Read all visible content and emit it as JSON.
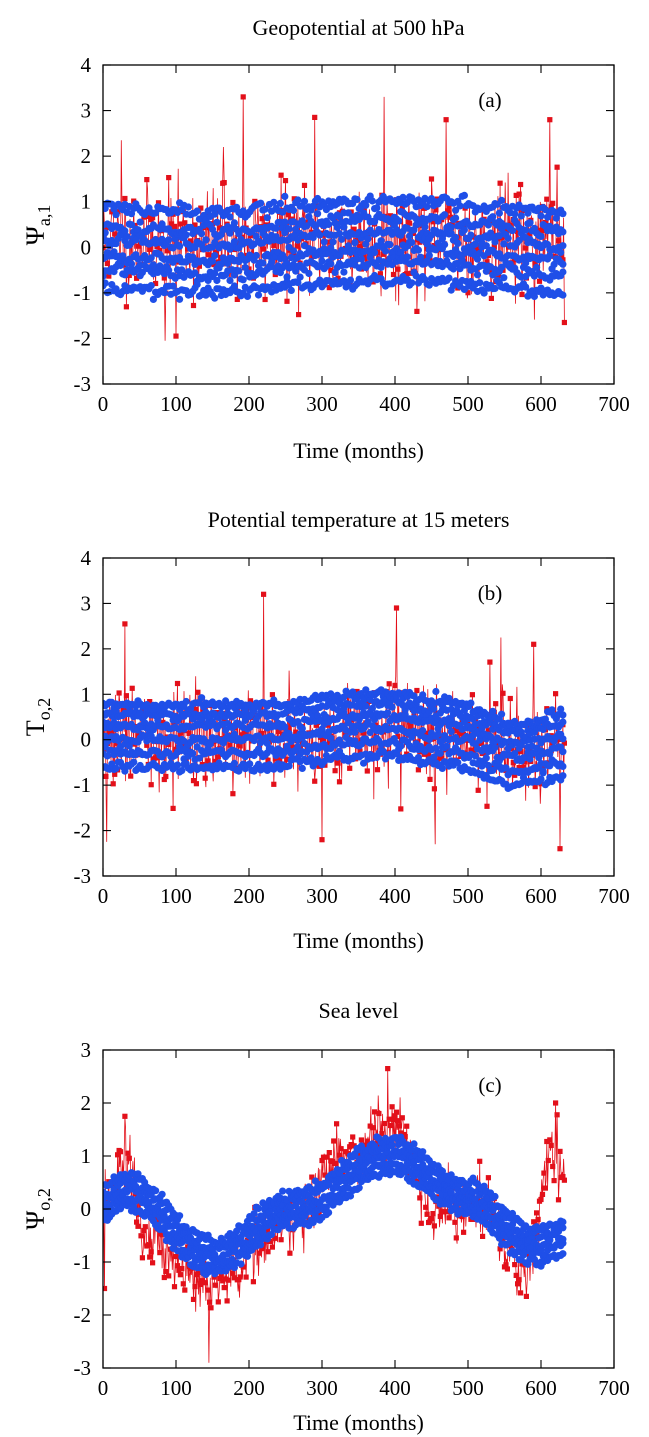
{
  "colors": {
    "red_series": "#e3101a",
    "blue_series": "#1f4fe8",
    "axis": "#000000"
  },
  "chart_data": [
    {
      "type": "scatter",
      "title": "Geopotential at 500 hPa",
      "panel_label": "(a)",
      "xlabel": "Time (months)",
      "ylabel_main": "Ψ",
      "ylabel_sub": "a,1",
      "xlim": [
        0,
        700
      ],
      "ylim": [
        -3,
        4
      ],
      "xticks": [
        0,
        100,
        200,
        300,
        400,
        500,
        600,
        700
      ],
      "yticks": [
        -3,
        -2,
        -1,
        0,
        1,
        2,
        3,
        4
      ],
      "x_range": [
        0,
        632
      ],
      "series": [
        {
          "kind": "red",
          "style": "squares-with-lines",
          "noise_sd": 1.05,
          "center": [
            [
              0,
              0.15
            ],
            [
              630,
              0.15
            ]
          ],
          "min": -2.05,
          "max": 3.3,
          "seed": 11,
          "peaks": [
            [
              85,
              -2.05
            ],
            [
              100,
              -1.95
            ],
            [
              192,
              3.3
            ],
            [
              385,
              3.3
            ],
            [
              290,
              2.85
            ],
            [
              470,
              2.8
            ],
            [
              612,
              2.8
            ],
            [
              632,
              -1.65
            ],
            [
              165,
              2.2
            ],
            [
              25,
              2.35
            ]
          ]
        },
        {
          "kind": "blue",
          "style": "dots",
          "center": [
            [
              0,
              0.0
            ],
            [
              150,
              -0.1
            ],
            [
              300,
              0.1
            ],
            [
              420,
              0.2
            ],
            [
              520,
              0.05
            ],
            [
              632,
              -0.1
            ]
          ],
          "offsets": [
            -0.9,
            -0.5,
            -0.2,
            0.15,
            0.45,
            0.85
          ],
          "spread": 0.08,
          "seed": 21
        }
      ]
    },
    {
      "type": "scatter",
      "title": "Potential temperature at 15 meters",
      "panel_label": "(b)",
      "xlabel": "Time (months)",
      "ylabel_main": "T",
      "ylabel_sub": "o,2",
      "xlim": [
        0,
        700
      ],
      "ylim": [
        -3,
        4
      ],
      "xticks": [
        0,
        100,
        200,
        300,
        400,
        500,
        600,
        700
      ],
      "yticks": [
        -3,
        -2,
        -1,
        0,
        1,
        2,
        3,
        4
      ],
      "x_range": [
        0,
        632
      ],
      "series": [
        {
          "kind": "red",
          "style": "squares-with-lines",
          "noise_sd": 0.95,
          "center": [
            [
              0,
              0.0
            ],
            [
              300,
              0.1
            ],
            [
              400,
              0.35
            ],
            [
              550,
              -0.2
            ],
            [
              632,
              -0.1
            ]
          ],
          "min": -2.4,
          "max": 3.2,
          "seed": 33,
          "peaks": [
            [
              220,
              3.2
            ],
            [
              402,
              2.9
            ],
            [
              30,
              2.55
            ],
            [
              5,
              -2.25
            ],
            [
              626,
              -2.4
            ],
            [
              300,
              -2.2
            ],
            [
              590,
              2.1
            ],
            [
              545,
              2.25
            ],
            [
              455,
              -2.3
            ]
          ]
        },
        {
          "kind": "blue",
          "style": "dots",
          "center": [
            [
              0,
              0.05
            ],
            [
              200,
              0.05
            ],
            [
              380,
              0.3
            ],
            [
              470,
              0.1
            ],
            [
              570,
              -0.35
            ],
            [
              632,
              -0.15
            ]
          ],
          "offsets": [
            -0.65,
            -0.35,
            -0.05,
            0.25,
            0.5,
            0.72
          ],
          "spread": 0.06,
          "seed": 44
        }
      ]
    },
    {
      "type": "scatter",
      "title": "Sea level",
      "panel_label": "(c)",
      "xlabel": "Time (months)",
      "ylabel_main": "Ψ",
      "ylabel_sub": "o,2",
      "xlim": [
        0,
        700
      ],
      "ylim": [
        -3,
        3
      ],
      "xticks": [
        0,
        100,
        200,
        300,
        400,
        500,
        600,
        700
      ],
      "yticks": [
        -3,
        -2,
        -1,
        0,
        1,
        2,
        3
      ],
      "x_range": [
        0,
        632
      ],
      "series": [
        {
          "kind": "red",
          "style": "squares-with-lines",
          "noise_sd": 0.55,
          "center": [
            [
              0,
              0.0
            ],
            [
              30,
              0.9
            ],
            [
              60,
              -0.6
            ],
            [
              145,
              -1.5
            ],
            [
              250,
              -0.3
            ],
            [
              330,
              0.9
            ],
            [
              395,
              1.6
            ],
            [
              460,
              0.0
            ],
            [
              520,
              0.1
            ],
            [
              575,
              -1.1
            ],
            [
              620,
              1.2
            ],
            [
              632,
              0.3
            ]
          ],
          "min": -2.9,
          "max": 2.65,
          "seed": 55,
          "peaks": [
            [
              145,
              -2.9
            ],
            [
              390,
              2.65
            ],
            [
              620,
              2.0
            ],
            [
              30,
              1.75
            ],
            [
              2,
              -1.5
            ]
          ]
        },
        {
          "kind": "blue",
          "style": "dots",
          "center": [
            [
              0,
              0.1
            ],
            [
              30,
              0.35
            ],
            [
              150,
              -0.9
            ],
            [
              260,
              0.0
            ],
            [
              395,
              1.0
            ],
            [
              500,
              0.2
            ],
            [
              590,
              -0.7
            ],
            [
              632,
              -0.55
            ]
          ],
          "offsets": [
            -0.3,
            -0.15,
            0.0,
            0.15,
            0.3
          ],
          "spread": 0.05,
          "seed": 66
        }
      ]
    }
  ]
}
